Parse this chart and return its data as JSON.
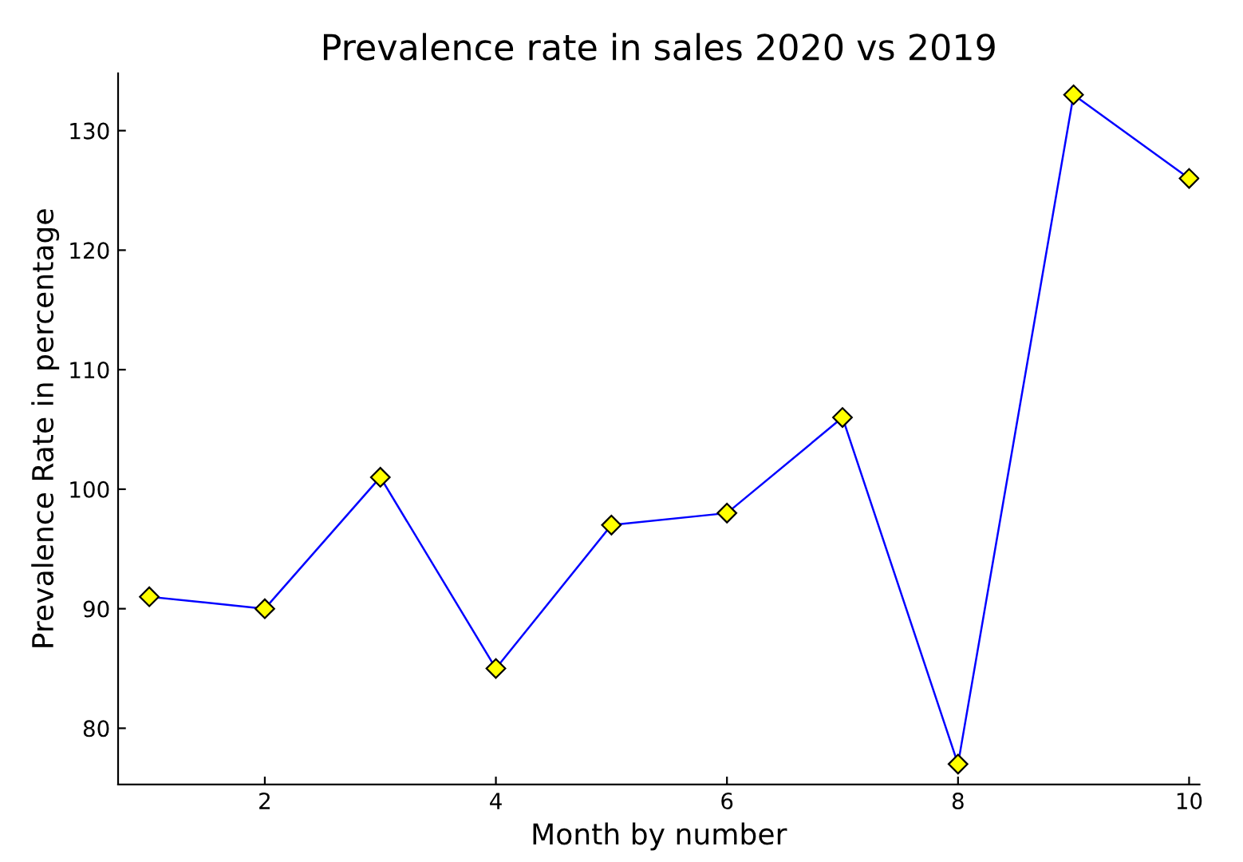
{
  "chart_data": {
    "type": "line",
    "title": "Prevalence rate in sales 2020 vs 2019",
    "xlabel": "Month by number",
    "ylabel": "Prevalence Rate in percentage",
    "x": [
      1,
      2,
      3,
      4,
      5,
      6,
      7,
      8,
      9,
      10
    ],
    "series": [
      {
        "color": "#0000ff",
        "values": [
          91,
          90,
          101,
          85,
          97,
          98,
          106,
          77,
          133,
          126
        ]
      }
    ],
    "xlim": [
      0.73,
      10.09
    ],
    "ylim": [
      75.3,
      134.8
    ],
    "xticks": [
      2,
      4,
      6,
      8,
      10
    ],
    "yticks": [
      80,
      90,
      100,
      110,
      120,
      130
    ],
    "marker": "diamond",
    "line_style": "solid",
    "grid": false,
    "legend": false
  }
}
